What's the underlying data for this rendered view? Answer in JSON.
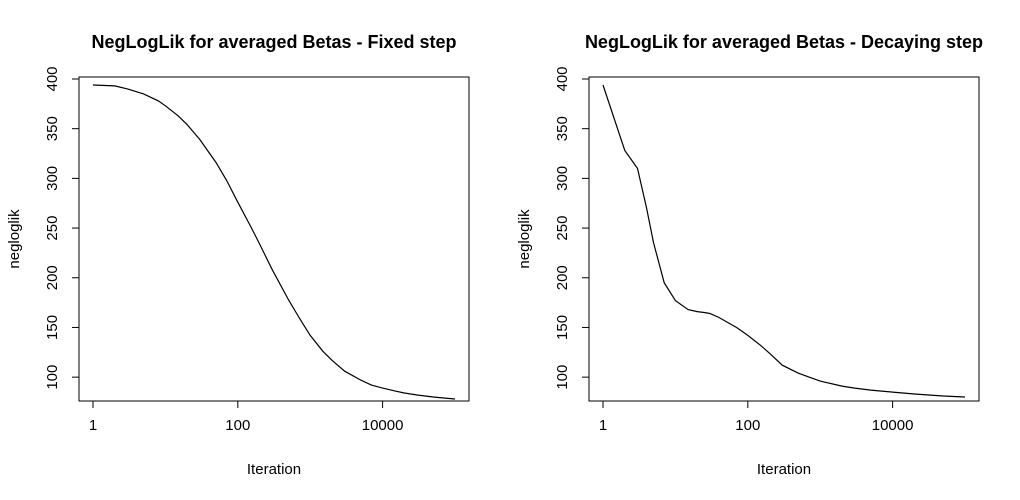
{
  "chart_data": [
    {
      "type": "line",
      "title": "NegLogLik for averaged Betas - Fixed step",
      "xlabel": "Iteration",
      "ylabel": "negloglik",
      "x_scale": "log10",
      "xlim": [
        1,
        100000
      ],
      "ylim": [
        76,
        402
      ],
      "x_ticks": [
        1,
        100,
        10000
      ],
      "x_tick_labels": [
        "1",
        "100",
        "10000"
      ],
      "y_ticks": [
        100,
        150,
        200,
        250,
        300,
        350,
        400
      ],
      "y_tick_labels": [
        "100",
        "150",
        "200",
        "250",
        "300",
        "350",
        "400"
      ],
      "grid": false,
      "series": [
        {
          "x": [
            1,
            2,
            3,
            5,
            8,
            10,
            15,
            20,
            30,
            50,
            70,
            100,
            150,
            200,
            300,
            500,
            700,
            1000,
            1500,
            2000,
            3000,
            5000,
            7000,
            10000,
            15000,
            20000,
            30000,
            50000,
            70000,
            100000
          ],
          "y": [
            394,
            393,
            390,
            385,
            378,
            373,
            363,
            354,
            339,
            316,
            298,
            276,
            252,
            234,
            208,
            178,
            160,
            142,
            126,
            117,
            106,
            97,
            92,
            89,
            86,
            84,
            82,
            80,
            79,
            78
          ]
        }
      ]
    },
    {
      "type": "line",
      "title": "NegLogLik for averaged Betas - Decaying step",
      "xlabel": "Iteration",
      "ylabel": "negloglik",
      "x_scale": "log10",
      "xlim": [
        1,
        100000
      ],
      "ylim": [
        76,
        402
      ],
      "x_ticks": [
        1,
        100,
        10000
      ],
      "x_tick_labels": [
        "1",
        "100",
        "10000"
      ],
      "y_ticks": [
        100,
        150,
        200,
        250,
        300,
        350,
        400
      ],
      "y_tick_labels": [
        "100",
        "150",
        "200",
        "250",
        "300",
        "350",
        "400"
      ],
      "grid": false,
      "series": [
        {
          "x": [
            1,
            2,
            3,
            4,
            5,
            7,
            10,
            15,
            20,
            25,
            30,
            40,
            50,
            70,
            100,
            150,
            200,
            300,
            500,
            700,
            1000,
            2000,
            3000,
            5000,
            10000,
            20000,
            50000,
            100000
          ],
          "y": [
            394,
            328,
            310,
            270,
            235,
            195,
            177,
            168,
            166,
            165,
            164,
            160,
            156,
            150,
            142,
            132,
            124,
            112,
            104,
            100,
            96,
            91,
            89,
            87,
            85,
            83,
            81,
            80
          ]
        }
      ]
    }
  ]
}
